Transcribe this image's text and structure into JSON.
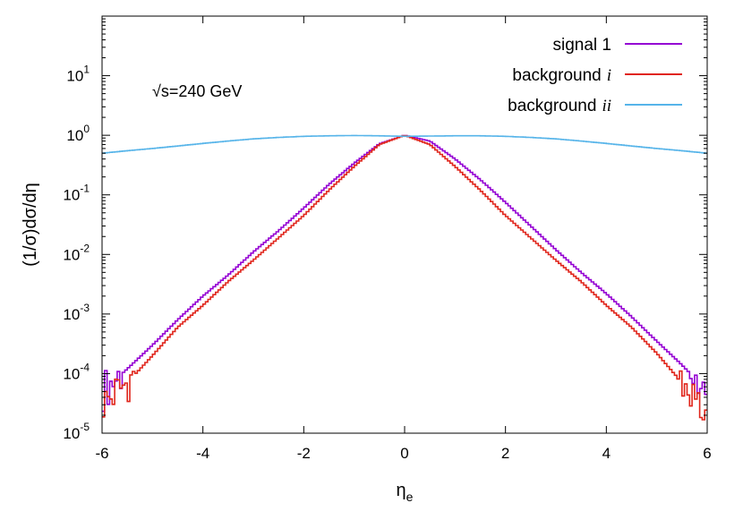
{
  "chart_data": {
    "type": "line",
    "title": "",
    "xlabel": "η",
    "xlabel_sub": "e",
    "ylabel": "(1/σ)dσ/dη",
    "xlim": [
      -6,
      6
    ],
    "ylim": [
      1e-05,
      100
    ],
    "yscale": "log",
    "grid": false,
    "legend_position": "top-right",
    "x_ticks": [
      -6,
      -4,
      -2,
      0,
      2,
      4,
      6
    ],
    "x_tick_labels": [
      "-6",
      "-4",
      "-2",
      "0",
      "2",
      "4",
      "6"
    ],
    "y_ticks": [
      {
        "value": 1e-05,
        "base": "10",
        "exp": "-5"
      },
      {
        "value": 0.0001,
        "base": "10",
        "exp": "-4"
      },
      {
        "value": 0.001,
        "base": "10",
        "exp": "-3"
      },
      {
        "value": 0.01,
        "base": "10",
        "exp": "-2"
      },
      {
        "value": 0.1,
        "base": "10",
        "exp": "-1"
      },
      {
        "value": 1,
        "base": "10",
        "exp": "0"
      },
      {
        "value": 10,
        "base": "10",
        "exp": "1"
      }
    ],
    "annotation": "√s=240 GeV",
    "series": [
      {
        "name": "signal 1",
        "name_italic": "",
        "color": "#9400d3",
        "x": [
          -6,
          -5.5,
          -5,
          -4.5,
          -4,
          -3.5,
          -3,
          -2.5,
          -2,
          -1.5,
          -1,
          -0.5,
          0,
          0.5,
          1,
          1.5,
          2,
          2.5,
          3,
          3.5,
          4,
          4.5,
          5,
          5.5,
          6
        ],
        "y": [
          5e-05,
          0.00012,
          0.0003,
          0.0008,
          0.002,
          0.0045,
          0.011,
          0.025,
          0.06,
          0.15,
          0.34,
          0.72,
          1.0,
          0.8,
          0.4,
          0.18,
          0.075,
          0.03,
          0.012,
          0.005,
          0.0022,
          0.0009,
          0.00035,
          0.00014,
          5e-05
        ]
      },
      {
        "name": "background",
        "name_italic": "i",
        "color": "#e0251b",
        "x": [
          -6,
          -5.5,
          -5,
          -4.5,
          -4,
          -3.5,
          -3,
          -2.5,
          -2,
          -1.5,
          -1,
          -0.5,
          0,
          0.5,
          1,
          1.5,
          2,
          2.5,
          3,
          3.5,
          4,
          4.5,
          5,
          5.5,
          6
        ],
        "y": [
          3e-05,
          7e-05,
          0.0002,
          0.0006,
          0.0014,
          0.0035,
          0.008,
          0.019,
          0.045,
          0.12,
          0.3,
          0.7,
          1.0,
          0.7,
          0.3,
          0.12,
          0.045,
          0.019,
          0.008,
          0.0035,
          0.0014,
          0.0006,
          0.00022,
          7e-05,
          2e-05
        ]
      },
      {
        "name": "background",
        "name_italic": "ii",
        "color": "#56b4e9",
        "x": [
          -6,
          -5.5,
          -5,
          -4.5,
          -4,
          -3.5,
          -3,
          -2.5,
          -2,
          -1.5,
          -1,
          -0.5,
          0,
          0.5,
          1,
          1.5,
          2,
          2.5,
          3,
          3.5,
          4,
          4.5,
          5,
          5.5,
          6
        ],
        "y": [
          0.5,
          0.55,
          0.6,
          0.66,
          0.73,
          0.8,
          0.87,
          0.92,
          0.96,
          0.98,
          0.99,
          0.98,
          0.96,
          0.97,
          0.98,
          0.98,
          0.96,
          0.92,
          0.87,
          0.8,
          0.73,
          0.66,
          0.6,
          0.55,
          0.5
        ]
      }
    ]
  }
}
